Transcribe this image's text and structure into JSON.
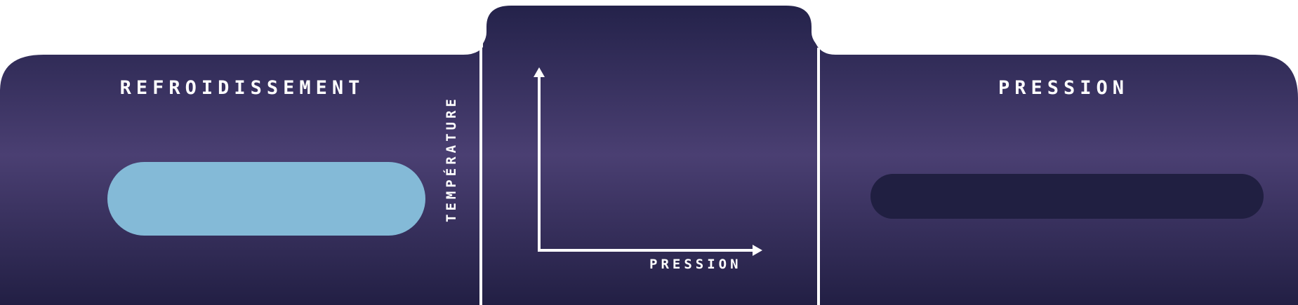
{
  "panels": {
    "left": {
      "title": "REFROIDISSEMENT",
      "button_color": "#84bad7"
    },
    "center": {
      "y_axis_label": "TEMPÉRATURE",
      "x_axis_label": "PRESSION"
    },
    "right": {
      "title": "PRESSION",
      "button_color": "#201f41"
    }
  },
  "colors": {
    "panel_gradient_top": "#24224a",
    "panel_gradient_mid": "#4a3f72",
    "panel_gradient_bottom": "#221f44",
    "divider": "#ffffff",
    "text": "#ffffff"
  }
}
